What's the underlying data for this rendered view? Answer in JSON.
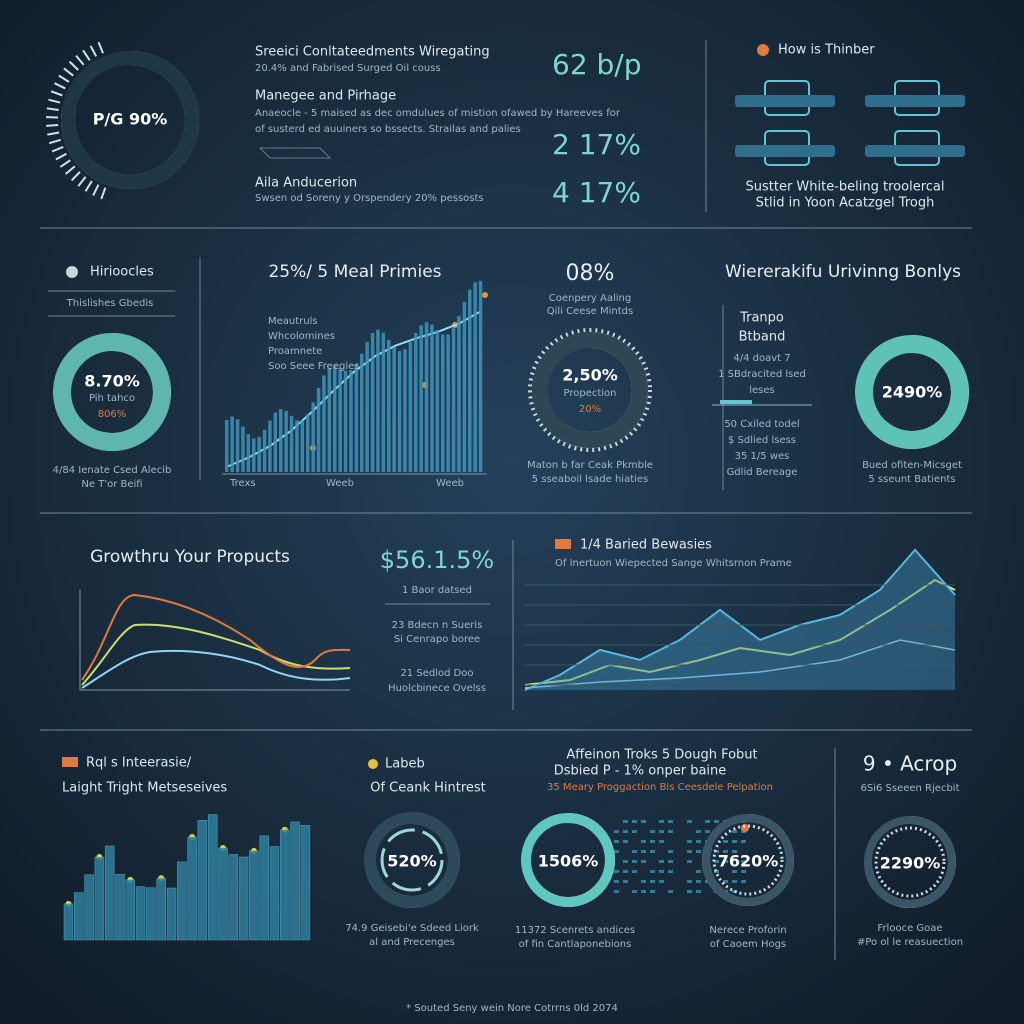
{
  "row1": {
    "donut": "P/G 90%",
    "title": "Sreeici Conltateedments Wiregating",
    "subtitle": "20.4% and Fabrised Surged Oil couss",
    "heading2": "Manegee and Pirhage",
    "para": [
      "Anaeocle - 5 maised as dec omdulues of mistion ofawed by Hareeves for",
      "of susterd ed auuiners so bssects. Strailas and palies"
    ],
    "heading3": "Aila Anducerion",
    "line3": "Swsen od Soreny y Orspendery 20% pessosts",
    "stats": [
      "62 b/p",
      "2 17%",
      "4 17%"
    ],
    "right_title": "How is Thinber",
    "right_caption": [
      "Sustter White-beling troolercal",
      "Stlid in Yoon Acatzgel Trogh"
    ]
  },
  "row2": {
    "left": {
      "title": "Hirioocles",
      "sub": "Thislishes Gbedis",
      "donut": "8.70%",
      "donut_sub": "Pih tahco",
      "donut_sub2": "806%",
      "caption": [
        "4/84 Ienate Csed Alecib",
        "Ne T'or Beifi"
      ]
    },
    "bars": {
      "title": "25%/ 5 Meal Primies",
      "legend": [
        "Meautruls",
        "Whcolomines",
        "Proamnete",
        "Soo Seee Freegies"
      ],
      "axis": [
        "Trexs",
        "Weeb",
        "Weeb"
      ]
    },
    "mid": {
      "title": "08%",
      "sub": [
        "Coenpery Aaling",
        "Qili Ceese Mintds"
      ],
      "donut": "2,50%",
      "donut_sub": "Propection",
      "donut_sub2": "20%",
      "caption": [
        "Maton b far Ceak Pkmble",
        "5 sseaboil lsade hiaties"
      ]
    },
    "right": {
      "title": "Wiererakifu Urivinng Bonlys",
      "sub": [
        "Tranpo",
        "Btband"
      ],
      "list": [
        "4/4 doavt 7",
        "1 SBdracited lsed",
        "leses",
        "50 Cxiled todel",
        "$ Sdlied lsess",
        "35 1/5 wes",
        "Gdlid Bereage"
      ],
      "donut": "2490%",
      "caption": [
        "Bued ofiten-Micsget",
        "5 sseunt Batients"
      ]
    }
  },
  "row3": {
    "left": {
      "title": "Growthru Your Propucts",
      "stat": "$56.1.5%",
      "notes": [
        "1 Baor datsed",
        "23 Bdecn n Sueris",
        "Si Cenrapo boree",
        "21 Sedlod Doo",
        "Huolcbinece Ovelss"
      ]
    },
    "right": {
      "title": "1/4 Baried Bewasies",
      "sub": "Of Inertuon Wiepected Sange Whitsrnon Prame"
    }
  },
  "row4": {
    "bars": {
      "title": "Rql s Inteerasie/",
      "sub": "Laight Tright Metseseives"
    },
    "labeb": {
      "title": "Labeb",
      "sub": "Of Ceank Hintrest",
      "donut": "520%",
      "caption": [
        "74.9 Geisebi'e Sdeed Liork",
        "al and Precenges"
      ]
    },
    "mid": {
      "title": "Affeinon Troks 5 Dough Fobut",
      "sub": "Dsbied P - 1% onper baine",
      "note": "35 Meary Proggaction Bis Ceesdele Pelpation",
      "donuts": [
        "1506%",
        "7620%"
      ],
      "captions": [
        [
          "11372 Scenrets andices",
          "of fin Cantlaponebions"
        ],
        [
          "Nerece Proforin",
          "of Caoem Hogs"
        ]
      ]
    },
    "right": {
      "title": "9 • Acrop",
      "sub": "6Si6 Sseeen Rjecbit",
      "donut": "2290%",
      "caption": [
        "Frlooce Goae",
        "#Po ol le reasuection"
      ]
    }
  },
  "footer": "* Souted Seny wein Nore Cotrrns 0ld 2074"
}
